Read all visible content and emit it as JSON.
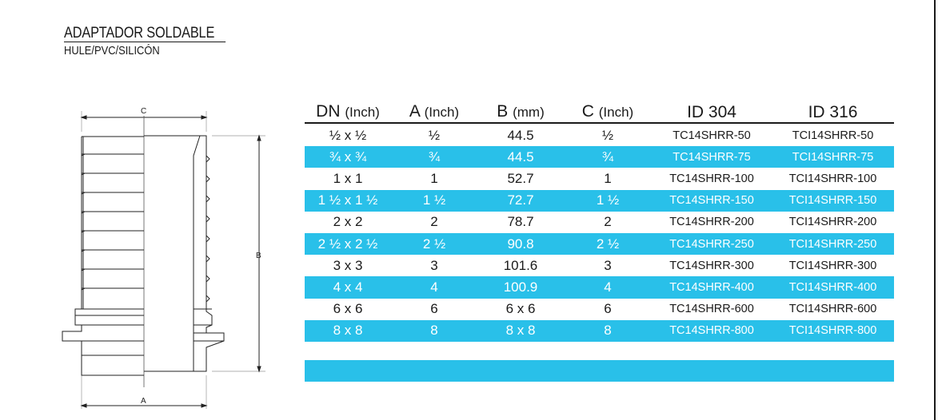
{
  "title": "ADAPTADOR SOLDABLE",
  "subtitle": "HULE/PVC/SILICÓN",
  "drawing": {
    "label_c": "C",
    "label_b": "B",
    "label_a": "A"
  },
  "colors": {
    "accent": "#29c0e9",
    "text": "#1a1a1a"
  },
  "table": {
    "headers": [
      {
        "main": "DN",
        "unit": "(Inch)"
      },
      {
        "main": "A",
        "unit": "(Inch)"
      },
      {
        "main": "B",
        "unit": "(mm)"
      },
      {
        "main": "C",
        "unit": "(Inch)"
      },
      {
        "main": "ID 304",
        "unit": ""
      },
      {
        "main": "ID 316",
        "unit": ""
      }
    ],
    "rows": [
      {
        "dn": "½ x ½",
        "a": "½",
        "b": "44.5",
        "c": "½",
        "id304": "TC14SHRR-50",
        "id316": "TCI14SHRR-50"
      },
      {
        "dn": "¾ x ¾",
        "a": "¾",
        "b": "44.5",
        "c": "¾",
        "id304": "TC14SHRR-75",
        "id316": "TCI14SHRR-75"
      },
      {
        "dn": "1 x 1",
        "a": "1",
        "b": "52.7",
        "c": "1",
        "id304": "TC14SHRR-100",
        "id316": "TCI14SHRR-100"
      },
      {
        "dn": "1 ½ x 1 ½",
        "a": "1 ½",
        "b": "72.7",
        "c": "1 ½",
        "id304": "TC14SHRR-150",
        "id316": "TCI14SHRR-150"
      },
      {
        "dn": "2 x 2",
        "a": "2",
        "b": "78.7",
        "c": "2",
        "id304": "TC14SHRR-200",
        "id316": "TCI14SHRR-200"
      },
      {
        "dn": "2 ½ x 2 ½",
        "a": "2 ½",
        "b": "90.8",
        "c": "2 ½",
        "id304": "TC14SHRR-250",
        "id316": "TCI14SHRR-250"
      },
      {
        "dn": "3 x 3",
        "a": "3",
        "b": "101.6",
        "c": "3",
        "id304": "TC14SHRR-300",
        "id316": "TCI14SHRR-300"
      },
      {
        "dn": "4 x 4",
        "a": "4",
        "b": "100.9",
        "c": "4",
        "id304": "TC14SHRR-400",
        "id316": "TCI14SHRR-400"
      },
      {
        "dn": "6 x 6",
        "a": "6",
        "b": "6 x 6",
        "c": "6",
        "id304": "TC14SHRR-600",
        "id316": "TCI14SHRR-600"
      },
      {
        "dn": "8 x 8",
        "a": "8",
        "b": "8 x 8",
        "c": "8",
        "id304": "TC14SHRR-800",
        "id316": "TCI14SHRR-800"
      }
    ]
  }
}
